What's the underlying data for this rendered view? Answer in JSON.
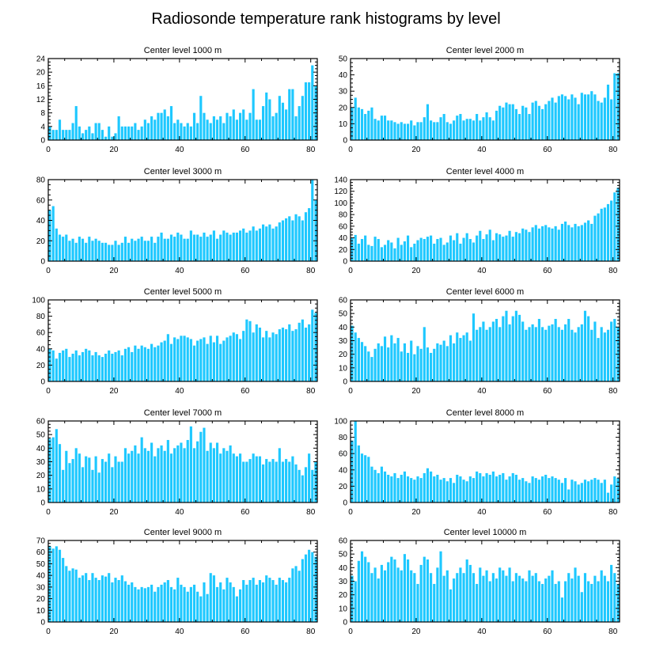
{
  "title": "Radiosonde temperature rank histograms by level",
  "colors": {
    "bar": "#1ec8ff",
    "frame": "#000000"
  },
  "chart_data": [
    {
      "type": "bar",
      "title": "Center level 1000 m",
      "xlim": [
        0,
        82
      ],
      "ylim": [
        0,
        24
      ],
      "xticks": [
        0,
        20,
        40,
        60,
        80
      ],
      "yticks": [
        0,
        4,
        8,
        12,
        16,
        20,
        24
      ],
      "values": [
        4,
        3,
        3,
        6,
        3,
        3,
        3,
        5,
        10,
        4,
        2,
        3,
        4,
        2,
        5,
        5,
        3,
        1,
        4,
        1,
        2,
        7,
        4,
        4,
        4,
        4,
        5,
        3,
        4,
        6,
        5,
        7,
        6,
        8,
        8,
        9,
        7,
        10,
        5,
        6,
        5,
        4,
        5,
        4,
        8,
        5,
        13,
        8,
        6,
        5,
        7,
        6,
        7,
        5,
        8,
        7,
        9,
        6,
        8,
        9,
        6,
        8,
        15,
        6,
        6,
        10,
        14,
        12,
        7,
        8,
        13,
        11,
        9,
        15,
        15,
        7,
        10,
        13,
        17,
        17,
        22,
        16
      ]
    },
    {
      "type": "bar",
      "title": "Center level 2000 m",
      "xlim": [
        0,
        82
      ],
      "ylim": [
        0,
        50
      ],
      "xticks": [
        0,
        20,
        40,
        60,
        80
      ],
      "yticks": [
        0,
        10,
        20,
        30,
        40,
        50
      ],
      "values": [
        20,
        26,
        20,
        19,
        16,
        18,
        20,
        13,
        12,
        15,
        15,
        12,
        12,
        11,
        10,
        11,
        10,
        10,
        12,
        9,
        11,
        11,
        14,
        22,
        12,
        11,
        11,
        14,
        16,
        11,
        10,
        12,
        15,
        16,
        12,
        13,
        13,
        12,
        16,
        12,
        14,
        17,
        14,
        12,
        18,
        21,
        20,
        23,
        22,
        22,
        19,
        16,
        21,
        20,
        16,
        23,
        24,
        21,
        19,
        22,
        24,
        26,
        23,
        27,
        28,
        27,
        25,
        28,
        26,
        22,
        29,
        28,
        28,
        30,
        28,
        24,
        23,
        26,
        34,
        25,
        41,
        41
      ]
    },
    {
      "type": "bar",
      "title": "Center level 3000 m",
      "xlim": [
        0,
        82
      ],
      "ylim": [
        0,
        80
      ],
      "xticks": [
        0,
        20,
        40,
        60,
        80
      ],
      "yticks": [
        0,
        20,
        40,
        60,
        80
      ],
      "values": [
        50,
        54,
        32,
        26,
        24,
        26,
        20,
        22,
        18,
        24,
        22,
        18,
        24,
        20,
        22,
        20,
        18,
        18,
        16,
        16,
        20,
        16,
        18,
        24,
        18,
        22,
        20,
        22,
        24,
        20,
        20,
        24,
        18,
        24,
        28,
        22,
        22,
        26,
        24,
        28,
        26,
        22,
        22,
        30,
        26,
        26,
        24,
        28,
        24,
        26,
        30,
        22,
        26,
        30,
        28,
        26,
        28,
        28,
        30,
        32,
        28,
        30,
        34,
        30,
        32,
        36,
        34,
        36,
        32,
        34,
        38,
        40,
        42,
        44,
        40,
        46,
        44,
        40,
        48,
        52,
        80,
        60
      ]
    },
    {
      "type": "bar",
      "title": "Center level 4000 m",
      "xlim": [
        0,
        82
      ],
      "ylim": [
        0,
        140
      ],
      "xticks": [
        0,
        20,
        40,
        60,
        80
      ],
      "yticks": [
        0,
        20,
        40,
        60,
        80,
        100,
        120,
        140
      ],
      "values": [
        40,
        45,
        30,
        38,
        44,
        28,
        26,
        42,
        38,
        24,
        28,
        36,
        32,
        22,
        40,
        28,
        34,
        44,
        24,
        30,
        36,
        40,
        38,
        42,
        44,
        30,
        38,
        40,
        28,
        32,
        44,
        36,
        48,
        30,
        40,
        48,
        38,
        32,
        44,
        52,
        38,
        46,
        54,
        36,
        48,
        46,
        42,
        44,
        52,
        42,
        50,
        48,
        56,
        54,
        50,
        58,
        62,
        56,
        60,
        62,
        58,
        56,
        60,
        54,
        64,
        68,
        62,
        58,
        64,
        60,
        62,
        66,
        70,
        64,
        78,
        82,
        90,
        92,
        98,
        104,
        118,
        126
      ]
    },
    {
      "type": "bar",
      "title": "Center level 5000 m",
      "xlim": [
        0,
        82
      ],
      "ylim": [
        0,
        100
      ],
      "xticks": [
        0,
        20,
        40,
        60,
        80
      ],
      "yticks": [
        0,
        20,
        40,
        60,
        80,
        100
      ],
      "values": [
        40,
        38,
        28,
        35,
        38,
        40,
        30,
        34,
        38,
        32,
        36,
        40,
        38,
        32,
        36,
        32,
        30,
        34,
        38,
        34,
        36,
        38,
        32,
        40,
        42,
        36,
        44,
        40,
        44,
        42,
        40,
        46,
        42,
        44,
        48,
        50,
        58,
        46,
        54,
        52,
        56,
        56,
        54,
        52,
        44,
        50,
        52,
        54,
        46,
        56,
        48,
        56,
        46,
        50,
        54,
        56,
        60,
        58,
        52,
        62,
        76,
        74,
        60,
        70,
        66,
        54,
        62,
        54,
        60,
        58,
        64,
        66,
        64,
        70,
        62,
        64,
        72,
        76,
        66,
        70,
        88,
        84
      ]
    },
    {
      "type": "bar",
      "title": "Center level 6000 m",
      "xlim": [
        0,
        82
      ],
      "ylim": [
        0,
        60
      ],
      "xticks": [
        0,
        20,
        40,
        60,
        80
      ],
      "yticks": [
        0,
        10,
        20,
        30,
        40,
        50,
        60
      ],
      "values": [
        41,
        36,
        32,
        29,
        26,
        22,
        18,
        24,
        28,
        26,
        33,
        25,
        34,
        28,
        32,
        22,
        28,
        21,
        30,
        20,
        26,
        24,
        40,
        25,
        21,
        24,
        28,
        27,
        30,
        26,
        34,
        28,
        36,
        32,
        34,
        36,
        30,
        50,
        38,
        40,
        44,
        38,
        40,
        44,
        46,
        40,
        48,
        52,
        42,
        48,
        52,
        49,
        44,
        38,
        40,
        42,
        40,
        46,
        40,
        38,
        41,
        42,
        46,
        40,
        38,
        42,
        46,
        38,
        36,
        40,
        42,
        52,
        48,
        38,
        44,
        32,
        40,
        36,
        38,
        44,
        46,
        40
      ]
    },
    {
      "type": "bar",
      "title": "Center level 7000 m",
      "xlim": [
        0,
        82
      ],
      "ylim": [
        0,
        60
      ],
      "xticks": [
        0,
        20,
        40,
        60,
        80
      ],
      "yticks": [
        0,
        10,
        20,
        30,
        40,
        50,
        60
      ],
      "values": [
        47,
        48,
        54,
        43,
        24,
        38,
        29,
        32,
        40,
        36,
        26,
        34,
        33,
        24,
        34,
        22,
        32,
        30,
        36,
        26,
        34,
        30,
        30,
        40,
        36,
        38,
        42,
        36,
        48,
        40,
        38,
        44,
        34,
        40,
        42,
        38,
        46,
        36,
        40,
        42,
        44,
        40,
        46,
        56,
        40,
        45,
        52,
        55,
        38,
        44,
        40,
        44,
        36,
        40,
        38,
        42,
        36,
        34,
        36,
        30,
        30,
        32,
        36,
        34,
        34,
        28,
        32,
        30,
        32,
        30,
        40,
        30,
        32,
        30,
        34,
        28,
        24,
        20,
        26,
        36,
        24,
        30
      ]
    },
    {
      "type": "bar",
      "title": "Center level 8000 m",
      "xlim": [
        0,
        82
      ],
      "ylim": [
        0,
        100
      ],
      "xticks": [
        0,
        20,
        40,
        60,
        80
      ],
      "yticks": [
        0,
        20,
        40,
        60,
        80,
        100
      ],
      "values": [
        76,
        100,
        70,
        60,
        58,
        56,
        44,
        40,
        36,
        44,
        38,
        34,
        32,
        36,
        30,
        34,
        38,
        32,
        30,
        28,
        32,
        30,
        36,
        42,
        38,
        32,
        34,
        28,
        30,
        26,
        30,
        24,
        34,
        32,
        28,
        26,
        32,
        30,
        38,
        36,
        32,
        36,
        34,
        38,
        32,
        34,
        36,
        28,
        32,
        36,
        34,
        28,
        30,
        26,
        24,
        32,
        30,
        28,
        32,
        34,
        30,
        32,
        30,
        28,
        24,
        30,
        16,
        28,
        26,
        22,
        24,
        28,
        26,
        28,
        30,
        28,
        24,
        28,
        12,
        22,
        32,
        30
      ]
    },
    {
      "type": "bar",
      "title": "Center level 9000 m",
      "xlim": [
        0,
        82
      ],
      "ylim": [
        0,
        70
      ],
      "xticks": [
        0,
        20,
        40,
        60,
        80
      ],
      "yticks": [
        0,
        10,
        20,
        30,
        40,
        50,
        60,
        70
      ],
      "values": [
        65,
        63,
        65,
        62,
        55,
        48,
        44,
        46,
        45,
        38,
        40,
        42,
        36,
        42,
        38,
        36,
        40,
        39,
        42,
        34,
        38,
        36,
        40,
        35,
        32,
        34,
        30,
        28,
        30,
        29,
        30,
        32,
        26,
        30,
        32,
        34,
        36,
        30,
        28,
        38,
        32,
        30,
        26,
        30,
        32,
        26,
        22,
        34,
        24,
        42,
        40,
        30,
        34,
        28,
        38,
        34,
        30,
        22,
        28,
        36,
        32,
        36,
        38,
        32,
        36,
        34,
        40,
        38,
        36,
        32,
        38,
        36,
        34,
        38,
        46,
        48,
        44,
        54,
        58,
        62,
        60,
        56
      ]
    },
    {
      "type": "bar",
      "title": "Center level 10000 m",
      "xlim": [
        0,
        82
      ],
      "ylim": [
        0,
        60
      ],
      "xticks": [
        0,
        20,
        40,
        60,
        80
      ],
      "yticks": [
        0,
        10,
        20,
        30,
        40,
        50,
        60
      ],
      "values": [
        34,
        30,
        45,
        52,
        48,
        44,
        36,
        40,
        32,
        42,
        38,
        44,
        48,
        46,
        40,
        38,
        50,
        46,
        38,
        36,
        28,
        42,
        48,
        46,
        36,
        28,
        40,
        52,
        34,
        38,
        24,
        32,
        36,
        40,
        36,
        46,
        42,
        36,
        28,
        40,
        34,
        38,
        30,
        36,
        32,
        40,
        38,
        34,
        40,
        30,
        36,
        34,
        32,
        30,
        38,
        34,
        36,
        30,
        28,
        32,
        34,
        38,
        28,
        30,
        18,
        30,
        36,
        32,
        40,
        34,
        22,
        36,
        30,
        28,
        34,
        30,
        38,
        34,
        30,
        42,
        36,
        28
      ]
    }
  ]
}
